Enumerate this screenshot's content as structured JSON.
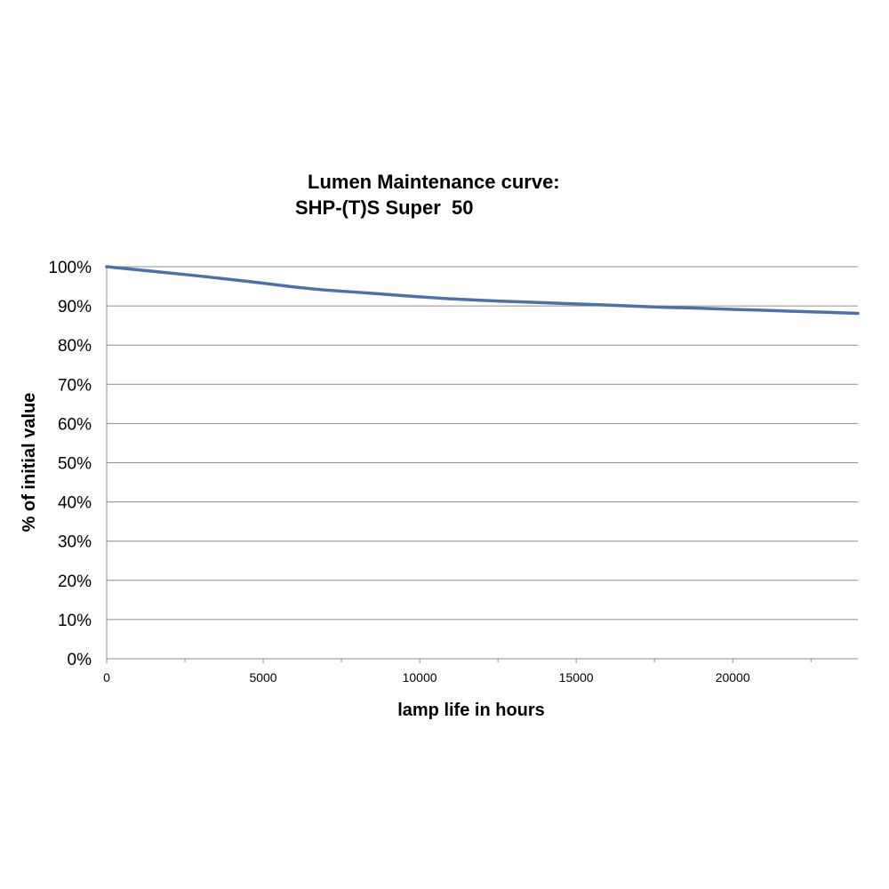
{
  "chart_data": {
    "type": "line",
    "title_line1": "Lumen Maintenance curve:",
    "title_line2": "SHP-(T)S Super  50",
    "xlabel": "lamp life in hours",
    "ylabel": "% of initial value",
    "xlim": [
      0,
      24000
    ],
    "ylim": [
      0,
      100
    ],
    "x_ticks": [
      0,
      5000,
      10000,
      15000,
      20000
    ],
    "y_ticks": [
      "0%",
      "10%",
      "20%",
      "30%",
      "40%",
      "50%",
      "60%",
      "70%",
      "80%",
      "90%",
      "100%"
    ],
    "grid": true,
    "legend": "none",
    "line_color": "#4a72a8",
    "series": [
      {
        "x": [
          0,
          1000,
          2000,
          3000,
          4000,
          5000,
          6000,
          7000,
          8000,
          9000,
          10000,
          11000,
          12000,
          13000,
          14000,
          15000,
          16000,
          17000,
          18000,
          19000,
          20000,
          21000,
          22000,
          23000,
          24000
        ],
        "values": [
          100,
          99.2,
          98.4,
          97.6,
          96.7,
          95.8,
          94.8,
          94.0,
          93.5,
          92.9,
          92.3,
          91.8,
          91.4,
          91.1,
          90.8,
          90.5,
          90.2,
          89.9,
          89.6,
          89.4,
          89.1,
          88.9,
          88.6,
          88.4,
          88.1
        ]
      }
    ]
  }
}
